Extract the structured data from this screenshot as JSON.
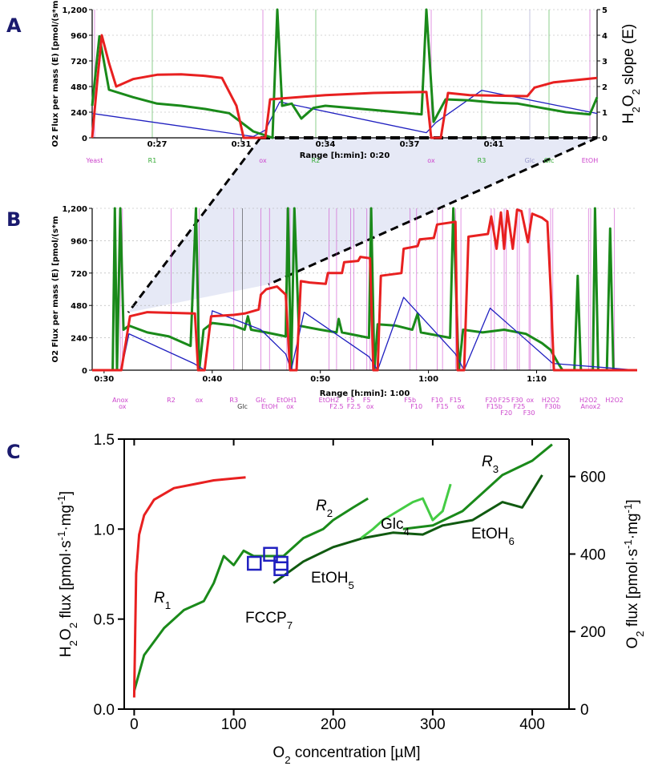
{
  "chart_data": [
    {
      "type": "line",
      "panel_label": "A",
      "ylabel": "O2 Flux per mass  (E) [pmol/(s*m",
      "y2label_parts": [
        "H",
        "2",
        "O",
        "2",
        " slope (E)"
      ],
      "xlabel": "Range [h:min]: 0:20",
      "xlim": [
        24.3,
        45.3
      ],
      "xticks": [
        {
          "value": 27,
          "label": "0:27"
        },
        {
          "value": 30.5,
          "label": "0:31"
        },
        {
          "value": 34,
          "label": "0:34"
        },
        {
          "value": 37.5,
          "label": "0:37"
        },
        {
          "value": 41,
          "label": "0:41"
        }
      ],
      "ylim": [
        0,
        1200
      ],
      "yticks": [
        0,
        240,
        480,
        720,
        960,
        {
          "value": 1200,
          "label": "1,200"
        }
      ],
      "y2lim": [
        0,
        5
      ],
      "y2ticks": [
        0,
        1,
        2,
        3,
        4,
        5
      ],
      "grid": true,
      "series": [
        {
          "color": "#2020c0",
          "axis": "y2",
          "x": [
            24.3,
            31.0,
            31.5,
            32.1,
            38.2,
            38.6,
            40.5,
            45.3
          ],
          "values": [
            0.95,
            0.05,
            0.3,
            1.4,
            0.2,
            0.6,
            1.85,
            0.95
          ]
        },
        {
          "color": "#1a8a1a",
          "x": [
            24.3,
            24.6,
            25,
            26,
            27,
            28,
            29,
            30,
            31,
            31.8,
            32.0,
            32.2,
            32.6,
            33,
            33.5,
            34,
            36,
            37,
            38,
            38.2,
            38.5,
            39,
            40,
            41,
            42,
            43,
            44,
            45,
            45.3
          ],
          "values": [
            300,
            950,
            450,
            380,
            320,
            300,
            270,
            230,
            60,
            0,
            1200,
            300,
            320,
            180,
            280,
            300,
            260,
            240,
            220,
            1200,
            150,
            360,
            350,
            330,
            320,
            280,
            240,
            220,
            380
          ]
        },
        {
          "color": "#e82020",
          "x": [
            24.3,
            24.5,
            24.7,
            25.0,
            25.3,
            26.0,
            27,
            28,
            29,
            29.7,
            30.3,
            30.6,
            31,
            31.5,
            31.7,
            34,
            36,
            38.2,
            38.4,
            38.8,
            39.1,
            40,
            42.4,
            42.7,
            43.5,
            45.3
          ],
          "values": [
            0,
            500,
            960,
            700,
            480,
            550,
            590,
            595,
            580,
            560,
            300,
            0,
            0,
            0,
            360,
            400,
            420,
            430,
            0,
            0,
            420,
            400,
            390,
            470,
            520,
            560
          ]
        }
      ],
      "events": [
        {
          "x": 24.4,
          "label": "Yeast",
          "color": "#cc44cc"
        },
        {
          "x": 26.8,
          "label": "R1",
          "color": "#33aa33"
        },
        {
          "x": 31.4,
          "label": "ox",
          "color": "#cc44cc"
        },
        {
          "x": 33.6,
          "label": "R2",
          "color": "#33aa33"
        },
        {
          "x": 38.4,
          "label": "ox",
          "color": "#cc44cc"
        },
        {
          "x": 40.5,
          "label": "R3",
          "color": "#33aa33"
        },
        {
          "x": 42.5,
          "label": "Glc",
          "color": "#9999cc"
        },
        {
          "x": 43.3,
          "label": "Glc",
          "color": "#33aa33"
        },
        {
          "x": 45.0,
          "label": "EtOH",
          "color": "#cc44cc"
        }
      ]
    },
    {
      "type": "line",
      "panel_label": "B",
      "ylabel": "O2 Flux per mass  (E) [pmol/(s*m",
      "xlabel": "Range [h:min]: 1:00",
      "xlim": [
        28.9,
        79.3
      ],
      "xticks": [
        {
          "value": 30,
          "label": "0:30"
        },
        {
          "value": 40,
          "label": "0:40"
        },
        {
          "value": 50,
          "label": "0:50"
        },
        {
          "value": 60,
          "label": "1:00"
        },
        {
          "value": 70,
          "label": "1:10"
        }
      ],
      "ylim": [
        0,
        1200
      ],
      "yticks": [
        0,
        240,
        480,
        720,
        960,
        {
          "value": 1200,
          "label": "1,200"
        }
      ],
      "grid": true,
      "series": [
        {
          "color": "#1a8a1a",
          "x": [
            28.9,
            30.8,
            31.0,
            31.2,
            31.5,
            31.8,
            32.3,
            34,
            36,
            38,
            38.5,
            38.8,
            39.2,
            40,
            42,
            43,
            43.3,
            43.6,
            45,
            46.8,
            47.0,
            47.3,
            47.6,
            48,
            50,
            51.5,
            51.7,
            52,
            54.5,
            54.7,
            55,
            55.3,
            57,
            58.5,
            59,
            59.3,
            62,
            62.3,
            62.8,
            63.2,
            65,
            67,
            69,
            70.5,
            71.3,
            72,
            72.4,
            73.5,
            73.8,
            74.1,
            75.2,
            75.4,
            75.7,
            76.5,
            76.8,
            77.1,
            79.3
          ],
          "values": [
            0,
            0,
            1200,
            0,
            1200,
            300,
            330,
            280,
            250,
            180,
            1200,
            0,
            300,
            350,
            330,
            300,
            400,
            300,
            280,
            250,
            1200,
            0,
            1200,
            330,
            300,
            280,
            380,
            280,
            240,
            1200,
            0,
            340,
            330,
            300,
            420,
            280,
            240,
            1200,
            0,
            300,
            280,
            300,
            270,
            200,
            150,
            50,
            0,
            0,
            700,
            0,
            0,
            1200,
            0,
            0,
            1050,
            0,
            0
          ]
        },
        {
          "color": "#2020c0",
          "x": [
            28.9,
            31.6,
            32.3,
            38.3,
            39.3,
            40,
            44.5,
            46.8,
            47.3,
            48.5,
            54.5,
            55.3,
            57.7,
            62.5,
            63.3,
            65.7,
            71.5,
            79.3
          ],
          "values": [
            0,
            0,
            270,
            50,
            0,
            440,
            300,
            120,
            0,
            430,
            100,
            0,
            540,
            120,
            0,
            460,
            50,
            0
          ]
        },
        {
          "color": "#e82020",
          "x": [
            28.9,
            31.6,
            32.4,
            34,
            38.4,
            38.7,
            39.3,
            39.9,
            42,
            43,
            44.3,
            44.5,
            45,
            46,
            46.8,
            47.2,
            47.8,
            48.2,
            49,
            50.5,
            50.7,
            52,
            52.2,
            53.5,
            53.7,
            54.6,
            54.9,
            55.3,
            55.6,
            57.5,
            57.7,
            59,
            59.2,
            60.5,
            60.8,
            62.5,
            62.7,
            63.3,
            63.7,
            65.5,
            65.8,
            66.3,
            66.7,
            67.0,
            67.3,
            67.8,
            68.2,
            68.6,
            69.2,
            69.6,
            70.5,
            71,
            71.3,
            71.6,
            79.3
          ],
          "values": [
            0,
            0,
            400,
            430,
            420,
            0,
            0,
            400,
            410,
            420,
            450,
            560,
            600,
            620,
            560,
            0,
            0,
            660,
            650,
            640,
            720,
            720,
            800,
            810,
            840,
            830,
            0,
            0,
            700,
            720,
            900,
            920,
            970,
            980,
            1080,
            1100,
            0,
            0,
            990,
            1010,
            1140,
            900,
            1170,
            900,
            1180,
            900,
            1190,
            1180,
            950,
            1160,
            1130,
            1100,
            600,
            0,
            0
          ]
        }
      ],
      "events": [
        {
          "x": 31.5,
          "label": "Anox",
          "color": "#cc44cc"
        },
        {
          "x": 31.7,
          "label": "ox",
          "color": "#cc44cc"
        },
        {
          "x": 36.2,
          "label": "R2",
          "color": "#cc44cc"
        },
        {
          "x": 38.8,
          "label": "ox",
          "color": "#cc44cc"
        },
        {
          "x": 42.0,
          "label": "R3",
          "color": "#cc44cc"
        },
        {
          "x": 42.8,
          "label": "Glc",
          "color": "#333333"
        },
        {
          "x": 44.5,
          "label": "Glc",
          "color": "#cc44cc"
        },
        {
          "x": 45.3,
          "label": "EtOH",
          "color": "#cc44cc"
        },
        {
          "x": 46.9,
          "label": "EtOH1",
          "color": "#cc44cc"
        },
        {
          "x": 47.2,
          "label": "ox",
          "color": "#cc44cc"
        },
        {
          "x": 50.8,
          "label": "EtOH2",
          "color": "#cc44cc"
        },
        {
          "x": 51.5,
          "label": "F2.5",
          "color": "#cc44cc"
        },
        {
          "x": 52.8,
          "label": "F5",
          "color": "#cc44cc"
        },
        {
          "x": 53.1,
          "label": "F2.5",
          "color": "#cc44cc"
        },
        {
          "x": 54.3,
          "label": "F5",
          "color": "#cc44cc"
        },
        {
          "x": 54.6,
          "label": "ox",
          "color": "#cc44cc"
        },
        {
          "x": 58.3,
          "label": "F5b",
          "color": "#cc44cc"
        },
        {
          "x": 58.9,
          "label": "F10",
          "color": "#cc44cc"
        },
        {
          "x": 60.8,
          "label": "F10",
          "color": "#cc44cc"
        },
        {
          "x": 61.3,
          "label": "F15",
          "color": "#cc44cc"
        },
        {
          "x": 62.5,
          "label": "F15",
          "color": "#cc44cc"
        },
        {
          "x": 63.0,
          "label": "ox",
          "color": "#cc44cc"
        },
        {
          "x": 65.8,
          "label": "F20",
          "color": "#cc44cc"
        },
        {
          "x": 66.1,
          "label": "F15b",
          "color": "#cc44cc"
        },
        {
          "x": 67.0,
          "label": "F25",
          "color": "#cc44cc"
        },
        {
          "x": 67.2,
          "label": "F20",
          "color": "#cc44cc"
        },
        {
          "x": 68.2,
          "label": "F30",
          "color": "#cc44cc"
        },
        {
          "x": 68.4,
          "label": "F25",
          "color": "#cc44cc"
        },
        {
          "x": 69.3,
          "label": "F30",
          "color": "#cc44cc"
        },
        {
          "x": 69.4,
          "label": "ox",
          "color": "#cc44cc"
        },
        {
          "x": 71.3,
          "label": "H2O2",
          "color": "#cc44cc"
        },
        {
          "x": 71.5,
          "label": "F30b",
          "color": "#cc44cc"
        },
        {
          "x": 74.8,
          "label": "H2O2",
          "color": "#cc44cc"
        },
        {
          "x": 75.0,
          "label": "Anox2",
          "color": "#cc44cc"
        },
        {
          "x": 77.2,
          "label": "H2O2",
          "color": "#cc44cc"
        }
      ]
    },
    {
      "type": "line",
      "panel_label": "C",
      "xlabel_parts": [
        "O",
        "2",
        " concentration [µM]"
      ],
      "ylabel_parts": [
        "H",
        "2",
        "O",
        "2",
        " flux [pmol·s",
        "-1",
        "·mg",
        "-1",
        "]"
      ],
      "y2label_parts": [
        "O",
        "2",
        " flux [pmol·s",
        "-1",
        "·mg",
        "-1",
        "]"
      ],
      "xlim": [
        -10,
        437
      ],
      "xticks": [
        0,
        100,
        200,
        300,
        400
      ],
      "ylim": [
        0,
        1.5
      ],
      "yticks": [
        {
          "value": 0,
          "label": "0.0"
        },
        0.5,
        {
          "value": 1,
          "label": "1.0"
        },
        1.5
      ],
      "y2lim": [
        0,
        696.5
      ],
      "y2ticks": [
        0,
        200,
        400,
        600
      ],
      "y2color": "#e02020",
      "series": [
        {
          "color": "#105a10",
          "x": [
            140,
            170,
            200,
            230,
            260,
            290,
            310,
            340,
            370,
            390,
            410
          ],
          "values": [
            0.7,
            0.82,
            0.9,
            0.95,
            0.98,
            0.97,
            1.02,
            1.05,
            1.15,
            1.12,
            1.3
          ]
        },
        {
          "color": "#44cc44",
          "x": [
            228,
            240,
            250,
            265,
            280,
            290,
            300,
            310,
            318
          ],
          "values": [
            0.95,
            1.0,
            1.05,
            1.1,
            1.15,
            1.17,
            1.05,
            1.1,
            1.25
          ]
        },
        {
          "color": "#1a8a1a",
          "x": [
            0,
            10,
            30,
            50,
            70,
            80,
            90,
            100,
            110,
            120,
            150,
            170,
            190,
            200,
            220,
            235,
            250,
            270,
            300,
            330,
            350,
            370,
            400,
            420
          ],
          "values": [
            0.1,
            0.3,
            0.45,
            0.55,
            0.6,
            0.7,
            0.85,
            0.8,
            0.88,
            0.85,
            0.85,
            0.95,
            1.0,
            1.05,
            1.12,
            1.17,
            null,
            1.0,
            1.02,
            1.1,
            1.2,
            1.3,
            1.38,
            1.47
          ]
        },
        {
          "color": "#e82020",
          "axis": "y2",
          "x": [
            0,
            1,
            2,
            5,
            10,
            20,
            40,
            60,
            80,
            100,
            112
          ],
          "values": [
            30,
            200,
            350,
            450,
            500,
            540,
            570,
            580,
            590,
            595,
            598
          ]
        },
        {
          "color": "#2020c0",
          "type": "scatter",
          "x": [
            120.7,
            137,
            147.5,
            147.5
          ],
          "values": [
            0.81,
            0.86,
            0.81,
            0.78
          ]
        }
      ],
      "annotations": [
        {
          "text": "R",
          "sub": "1",
          "color": "#000000"
        },
        {
          "text": "R",
          "sub": "2",
          "color": "#000000"
        },
        {
          "text": "R",
          "sub": "3",
          "color": "#000000"
        },
        {
          "text": "Glc",
          "sub": "4",
          "color": "#44cc44"
        },
        {
          "text": "EtOH",
          "sub": "5",
          "color": "#1a8a1a"
        },
        {
          "text": "EtOH",
          "sub": "6",
          "color": "#1a8a1a"
        },
        {
          "text": "FCCP",
          "sub": "7",
          "color": "#2020c0"
        }
      ]
    }
  ]
}
